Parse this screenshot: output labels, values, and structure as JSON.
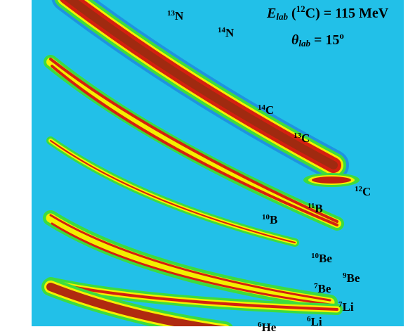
{
  "energy": {
    "symbol": "E",
    "subscript": "lab",
    "open": "(",
    "beam_mass": "12",
    "rest": "C) = 115 MeV"
  },
  "angle": {
    "symbol": "θ",
    "subscript": "lab",
    "value": " = 15",
    "unit": "o"
  },
  "isotopes": [
    {
      "mass": "13",
      "symbol": "N"
    },
    {
      "mass": "14",
      "symbol": "N"
    },
    {
      "mass": "14",
      "symbol": "C"
    },
    {
      "mass": "13",
      "symbol": "C"
    },
    {
      "mass": "12",
      "symbol": "C"
    },
    {
      "mass": "11",
      "symbol": "B"
    },
    {
      "mass": "10",
      "symbol": "B"
    },
    {
      "mass": "10",
      "symbol": "Be"
    },
    {
      "mass": "9",
      "symbol": "Be"
    },
    {
      "mass": "7",
      "symbol": "Be"
    },
    {
      "mass": "7",
      "symbol": "Li"
    },
    {
      "mass": "6",
      "symbol": "Li"
    },
    {
      "mass": "6",
      "symbol": "He"
    }
  ]
}
